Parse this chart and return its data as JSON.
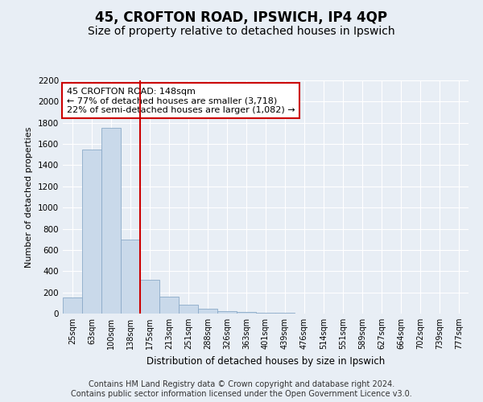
{
  "title_line1": "45, CROFTON ROAD, IPSWICH, IP4 4QP",
  "title_line2": "Size of property relative to detached houses in Ipswich",
  "xlabel": "Distribution of detached houses by size in Ipswich",
  "ylabel": "Number of detached properties",
  "footnote": "Contains HM Land Registry data © Crown copyright and database right 2024.\nContains public sector information licensed under the Open Government Licence v3.0.",
  "bin_labels": [
    "25sqm",
    "63sqm",
    "100sqm",
    "138sqm",
    "175sqm",
    "213sqm",
    "251sqm",
    "288sqm",
    "326sqm",
    "363sqm",
    "401sqm",
    "439sqm",
    "476sqm",
    "514sqm",
    "551sqm",
    "589sqm",
    "627sqm",
    "664sqm",
    "702sqm",
    "739sqm",
    "777sqm"
  ],
  "bar_values": [
    150,
    1550,
    1750,
    700,
    320,
    160,
    80,
    45,
    25,
    15,
    10,
    5,
    2,
    1,
    0,
    0,
    0,
    0,
    0,
    0,
    0
  ],
  "bar_color": "#c9d9ea",
  "bar_edge_color": "#8baac8",
  "property_bin_index": 3,
  "annotation_text": "45 CROFTON ROAD: 148sqm\n← 77% of detached houses are smaller (3,718)\n22% of semi-detached houses are larger (1,082) →",
  "annotation_box_color": "#ffffff",
  "annotation_box_edge_color": "#cc0000",
  "red_line_color": "#cc0000",
  "ylim": [
    0,
    2200
  ],
  "yticks": [
    0,
    200,
    400,
    600,
    800,
    1000,
    1200,
    1400,
    1600,
    1800,
    2000,
    2200
  ],
  "bg_color": "#e8eef5",
  "plot_bg_color": "#e8eef5",
  "grid_color": "#ffffff",
  "title1_fontsize": 12,
  "title2_fontsize": 10,
  "footnote_fontsize": 7
}
